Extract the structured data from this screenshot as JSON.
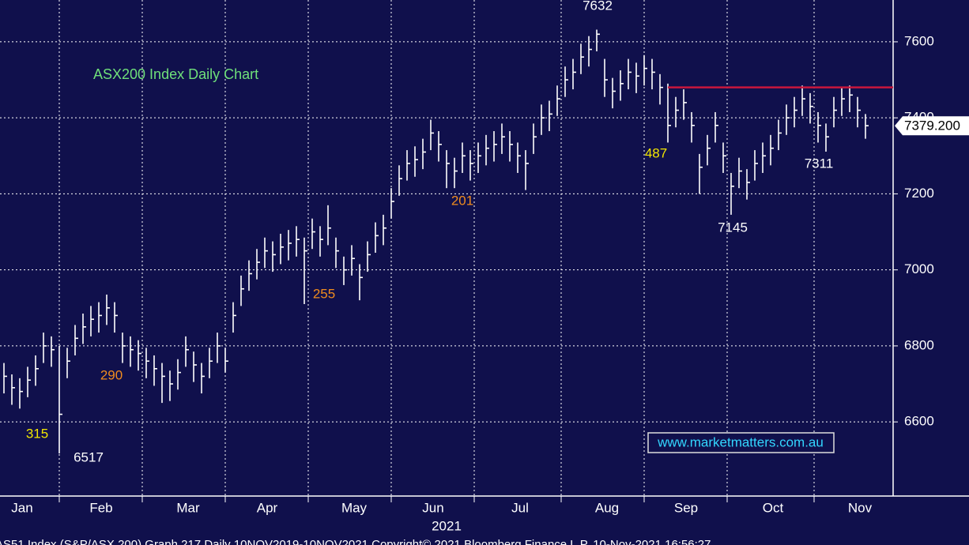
{
  "chart_data": {
    "type": "hlc",
    "title": "ASX200 Index Daily Chart",
    "xlabel": "2021",
    "footer": "AS51 Index (S&P/ASX 200) Graph 217 Daily 10NOV2019-10NOV2021   Copyright© 2021 Bloomberg Finance L.P.  10-Nov-2021 16:56:27",
    "watermark": "www.marketmatters.com.au",
    "categories": [
      null,
      null,
      "Jan",
      null,
      null,
      null,
      null,
      null,
      null,
      null,
      null,
      null,
      "Feb",
      null,
      null,
      null,
      null,
      null,
      null,
      null,
      null,
      null,
      null,
      "Mar",
      null,
      null,
      null,
      null,
      null,
      null,
      null,
      null,
      null,
      "Apr",
      null,
      null,
      null,
      null,
      null,
      null,
      null,
      null,
      null,
      null,
      "May",
      null,
      null,
      null,
      null,
      null,
      null,
      null,
      null,
      null,
      "Jun",
      null,
      null,
      null,
      null,
      null,
      null,
      null,
      null,
      null,
      null,
      "Jul",
      null,
      null,
      null,
      null,
      null,
      null,
      null,
      null,
      null,
      null,
      "Aug",
      null,
      null,
      null,
      null,
      null,
      null,
      null,
      null,
      null,
      "Sep",
      null,
      null,
      null,
      null,
      null,
      null,
      null,
      null,
      null,
      null,
      "Oct",
      null,
      null,
      null,
      null,
      null,
      null,
      null,
      null,
      null,
      null,
      "Nov",
      null
    ],
    "series": [
      {
        "name": "AS51",
        "color": "#ffffff",
        "high": [
          6755,
          6725,
          6715,
          6745,
          6775,
          6835,
          6825,
          6800,
          6795,
          6855,
          6885,
          6905,
          6915,
          6935,
          6915,
          6835,
          6825,
          6815,
          6795,
          6775,
          6755,
          6735,
          6765,
          6825,
          6785,
          6755,
          6795,
          6835,
          6795,
          6915,
          6985,
          7025,
          7055,
          7085,
          7075,
          7095,
          7105,
          7115,
          7085,
          7135,
          7115,
          7170,
          7085,
          7035,
          7065,
          7015,
          7075,
          7125,
          7145,
          7215,
          7275,
          7315,
          7325,
          7345,
          7395,
          7365,
          7315,
          7295,
          7335,
          7315,
          7335,
          7355,
          7365,
          7385,
          7365,
          7335,
          7315,
          7385,
          7435,
          7445,
          7485,
          7535,
          7555,
          7595,
          7615,
          7632,
          7555,
          7505,
          7525,
          7555,
          7545,
          7565,
          7555,
          7515,
          7490,
          7455,
          7475,
          7415,
          7305,
          7355,
          7415,
          7335,
          7255,
          7295,
          7265,
          7315,
          7335,
          7355,
          7395,
          7435,
          7455,
          7485,
          7465,
          7415,
          7385,
          7455,
          7480,
          7485,
          7455,
          7410
        ],
        "low": [
          6675,
          6645,
          6635,
          6665,
          6695,
          6755,
          6745,
          6517,
          6715,
          6775,
          6805,
          6825,
          6835,
          6855,
          6835,
          6755,
          6745,
          6735,
          6715,
          6695,
          6650,
          6655,
          6685,
          6745,
          6705,
          6675,
          6715,
          6755,
          6730,
          6835,
          6905,
          6945,
          6975,
          7005,
          6995,
          7015,
          7025,
          7035,
          6910,
          7055,
          7035,
          7065,
          7005,
          6960,
          6985,
          6920,
          6995,
          7045,
          7065,
          7135,
          7195,
          7235,
          7245,
          7265,
          7315,
          7285,
          7215,
          7215,
          7255,
          7235,
          7255,
          7275,
          7285,
          7305,
          7285,
          7255,
          7210,
          7305,
          7355,
          7365,
          7405,
          7455,
          7475,
          7515,
          7535,
          7575,
          7455,
          7425,
          7445,
          7475,
          7465,
          7485,
          7475,
          7435,
          7335,
          7375,
          7395,
          7335,
          7200,
          7275,
          7335,
          7255,
          7145,
          7215,
          7185,
          7235,
          7255,
          7275,
          7315,
          7355,
          7375,
          7405,
          7385,
          7335,
          7311,
          7375,
          7405,
          7415,
          7375,
          7345
        ],
        "close": [
          6720,
          6690,
          6680,
          6710,
          6740,
          6800,
          6790,
          6620,
          6760,
          6820,
          6850,
          6870,
          6880,
          6900,
          6880,
          6800,
          6790,
          6780,
          6760,
          6740,
          6720,
          6700,
          6730,
          6790,
          6750,
          6720,
          6760,
          6800,
          6760,
          6880,
          6950,
          6990,
          7020,
          7050,
          7040,
          7060,
          7070,
          7080,
          7050,
          7100,
          7080,
          7110,
          7050,
          7000,
          7030,
          6980,
          7040,
          7090,
          7110,
          7180,
          7240,
          7280,
          7290,
          7310,
          7360,
          7330,
          7280,
          7260,
          7300,
          7280,
          7300,
          7320,
          7330,
          7350,
          7330,
          7300,
          7280,
          7350,
          7400,
          7410,
          7450,
          7500,
          7520,
          7560,
          7580,
          7620,
          7500,
          7470,
          7490,
          7520,
          7510,
          7530,
          7520,
          7480,
          7380,
          7420,
          7440,
          7380,
          7270,
          7320,
          7380,
          7300,
          7220,
          7260,
          7230,
          7280,
          7300,
          7320,
          7360,
          7400,
          7420,
          7450,
          7430,
          7380,
          7350,
          7420,
          7450,
          7460,
          7420,
          7379.2
        ]
      }
    ],
    "last_label": "7379.200",
    "resistance": {
      "value": 7480,
      "start": 84,
      "color": "#c8163c"
    },
    "annotations": [
      {
        "text": "7632",
        "color": "#ffffff"
      },
      {
        "text": "487",
        "color": "#f2e600"
      },
      {
        "text": "7311",
        "color": "#ffffff"
      },
      {
        "text": "7145",
        "color": "#ffffff"
      },
      {
        "text": "201",
        "color": "#f08c1e"
      },
      {
        "text": "255",
        "color": "#f08c1e"
      },
      {
        "text": "290",
        "color": "#f08c1e"
      },
      {
        "text": "315",
        "color": "#f2e600"
      },
      {
        "text": "6517",
        "color": "#ffffff"
      }
    ],
    "ylim": [
      6405,
      7710
    ],
    "yticks": [
      6600,
      6800,
      7000,
      7200,
      7400,
      7600
    ],
    "grid": true,
    "background": "#10104c"
  }
}
